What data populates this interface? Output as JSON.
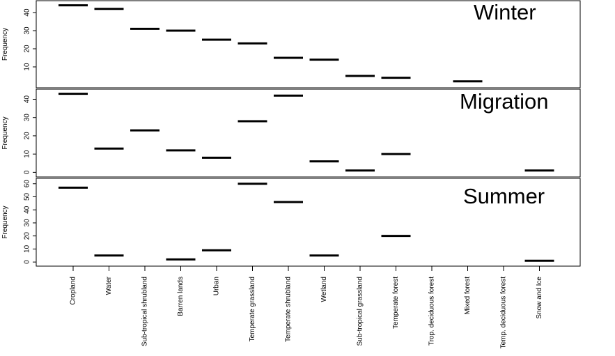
{
  "chart_data": {
    "type": "scatter",
    "marker": "horizontal-dash",
    "categories": [
      "Cropland",
      "Water",
      "Sub-tropical shrubland",
      "Barren lands",
      "Urban",
      "Temperate grassland",
      "Temperate shrubland",
      "Wetland",
      "Sub-tropical grassland",
      "Temperate forest",
      "Trop. deciduous forest",
      "Mixed forest",
      "Temp. deciduous forest",
      "Snow and Ice"
    ],
    "ylabel": "Frequency",
    "grid": false,
    "panels": [
      {
        "title": "Winter",
        "ylabel": "Frequency",
        "yticks": [
          10,
          20,
          30,
          40
        ],
        "ylim": [
          0,
          45
        ],
        "values": [
          44,
          42,
          31,
          30,
          25,
          23,
          15,
          14,
          5,
          4,
          null,
          2,
          null,
          null
        ]
      },
      {
        "title": "Migration",
        "ylabel": "Frequency",
        "yticks": [
          0,
          10,
          20,
          30,
          40
        ],
        "ylim": [
          -1,
          44
        ],
        "values": [
          43,
          13,
          23,
          12,
          8,
          28,
          42,
          6,
          1,
          10,
          null,
          null,
          null,
          1
        ]
      },
      {
        "title": "Summer",
        "ylabel": "Frequency",
        "yticks": [
          0,
          10,
          20,
          30,
          40,
          50,
          60
        ],
        "ylim": [
          -1,
          62
        ],
        "values": [
          57,
          5,
          null,
          2,
          9,
          60,
          46,
          5,
          null,
          20,
          null,
          null,
          null,
          1
        ]
      }
    ]
  }
}
